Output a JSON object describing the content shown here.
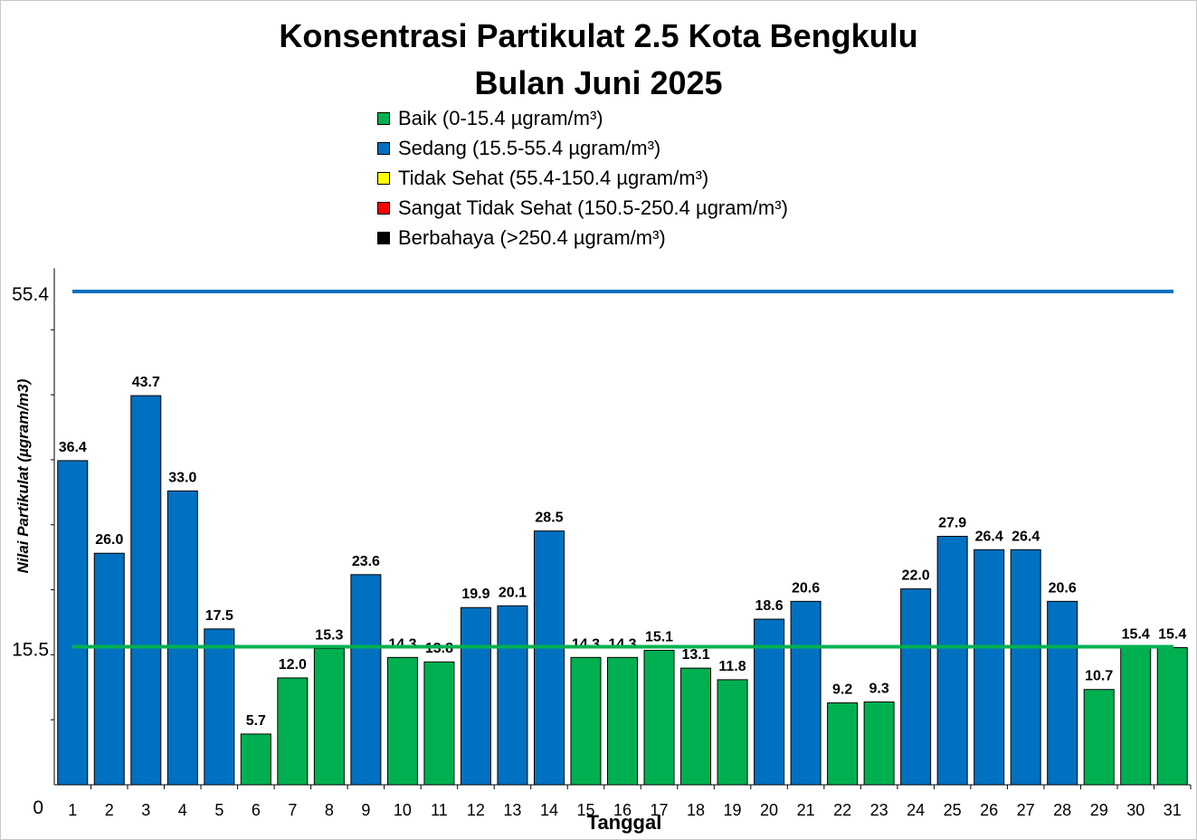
{
  "chart_data": {
    "type": "bar",
    "title_line1": "Konsentrasi Partikulat 2.5 Kota Bengkulu",
    "title_line2": "Bulan Juni 2025",
    "xlabel": "Tanggal",
    "ylabel": "Nilai Partikulat (µgram/m3)",
    "categories": [
      "1",
      "2",
      "3",
      "4",
      "5",
      "6",
      "7",
      "8",
      "9",
      "10",
      "11",
      "12",
      "13",
      "14",
      "15",
      "16",
      "17",
      "18",
      "19",
      "20",
      "21",
      "22",
      "23",
      "24",
      "25",
      "26",
      "27",
      "28",
      "29",
      "30",
      "31"
    ],
    "values": [
      36.4,
      26.0,
      43.7,
      33.0,
      17.5,
      5.7,
      12.0,
      15.3,
      23.6,
      14.3,
      13.8,
      19.9,
      20.1,
      28.5,
      14.3,
      14.3,
      15.1,
      13.1,
      11.8,
      18.6,
      20.6,
      9.2,
      9.3,
      22.0,
      27.9,
      26.4,
      26.4,
      20.6,
      10.7,
      15.4,
      15.4
    ],
    "value_labels": [
      "36.4",
      "26.0",
      "43.7",
      "33.0",
      "17.5",
      "5.7",
      "12.0",
      "15.3",
      "23.6",
      "14.3",
      "13.8",
      "19.9",
      "20.1",
      "28.5",
      "14.3",
      "14.3",
      "15.1",
      "13.1",
      "11.8",
      "18.6",
      "20.6",
      "9.2",
      "9.3",
      "22.0",
      "27.9",
      "26.4",
      "26.4",
      "20.6",
      "10.7",
      "15.4",
      "15.4"
    ],
    "bar_categories": [
      "sedang",
      "sedang",
      "sedang",
      "sedang",
      "sedang",
      "baik",
      "baik",
      "baik",
      "sedang",
      "baik",
      "baik",
      "sedang",
      "sedang",
      "sedang",
      "baik",
      "baik",
      "baik",
      "baik",
      "baik",
      "sedang",
      "sedang",
      "baik",
      "baik",
      "sedang",
      "sedang",
      "sedang",
      "sedang",
      "sedang",
      "baik",
      "baik",
      "baik"
    ],
    "ylim": [
      0,
      58
    ],
    "y_tick_labels": [
      {
        "value": 0,
        "label": "0"
      },
      {
        "value": 15.5,
        "label": "15.5"
      },
      {
        "value": 55.4,
        "label": "55.4"
      }
    ],
    "y_minor_ticks": [
      7.3,
      14.6,
      21.9,
      29.2,
      36.5,
      43.8,
      51.1
    ],
    "reference_lines": [
      {
        "value": 55.4,
        "color": "#0070c0"
      },
      {
        "value": 15.5,
        "color": "#00b050"
      }
    ],
    "colors": {
      "baik": "#00b050",
      "sedang": "#0070c0",
      "tidak_sehat": "#ffff00",
      "sangat_tidak_sehat": "#ff0000",
      "berbahaya": "#000000"
    },
    "grid": false,
    "legend_position": "top-center",
    "legend": [
      {
        "label": "Baik (0-15.4 µgram/m³)",
        "color": "#00b050"
      },
      {
        "label": "Sedang (15.5-55.4 µgram/m³)",
        "color": "#0070c0"
      },
      {
        "label": "Tidak Sehat (55.4-150.4 µgram/m³)",
        "color": "#ffff00"
      },
      {
        "label": "Sangat Tidak Sehat (150.5-250.4 µgram/m³)",
        "color": "#ff0000"
      },
      {
        "label": "Berbahaya (>250.4 µgram/m³)",
        "color": "#000000"
      }
    ]
  }
}
